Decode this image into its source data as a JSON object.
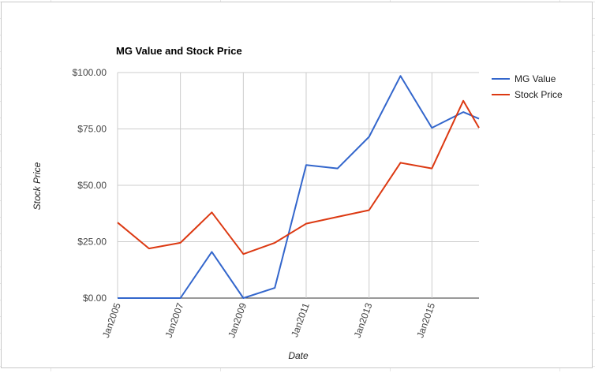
{
  "chart_data": {
    "type": "line",
    "title": "MG Value and Stock Price",
    "xlabel": "Date",
    "ylabel": "Stock Price",
    "ylim": [
      0,
      100
    ],
    "xlim": [
      "2005-01-01",
      "2016-07-01"
    ],
    "y_ticks": [
      {
        "value": 0,
        "label": "$0.00"
      },
      {
        "value": 25,
        "label": "$25.00"
      },
      {
        "value": 50,
        "label": "$50.00"
      },
      {
        "value": 75,
        "label": "$75.00"
      },
      {
        "value": 100,
        "label": "$100.00"
      }
    ],
    "x_ticks": [
      {
        "value": "2005-01-01",
        "label": "Jan2005"
      },
      {
        "value": "2007-01-01",
        "label": "Jan2007"
      },
      {
        "value": "2009-01-01",
        "label": "Jan2009"
      },
      {
        "value": "2011-01-01",
        "label": "Jan2011"
      },
      {
        "value": "2013-01-01",
        "label": "Jan2013"
      },
      {
        "value": "2015-01-01",
        "label": "Jan2015"
      }
    ],
    "x": [
      "2005-01-01",
      "2006-01-01",
      "2007-01-01",
      "2008-01-01",
      "2009-01-01",
      "2010-01-01",
      "2011-01-01",
      "2012-01-01",
      "2013-01-01",
      "2014-01-01",
      "2015-01-01",
      "2016-01-01",
      "2016-07-01"
    ],
    "series": [
      {
        "name": "MG Value",
        "color": "#3366cc",
        "values": [
          0,
          0,
          0,
          20.5,
          0,
          4.5,
          59,
          57.5,
          71.5,
          98.5,
          75.5,
          82.5,
          79.5
        ]
      },
      {
        "name": "Stock Price",
        "color": "#dc3912",
        "values": [
          33.5,
          22,
          24.5,
          38,
          19.5,
          24.5,
          33,
          36,
          39,
          60,
          57.5,
          87.5,
          75.5
        ]
      }
    ],
    "grid": true,
    "legend_position": "right"
  }
}
